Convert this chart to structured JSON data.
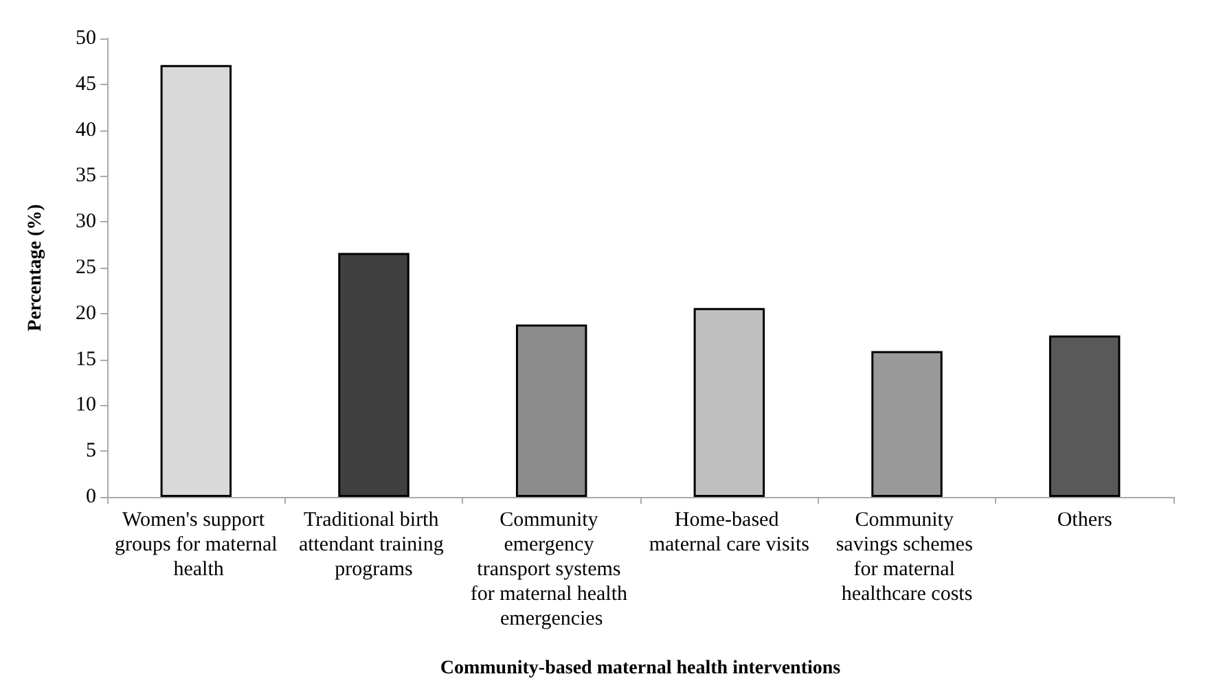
{
  "chart_data": {
    "type": "bar",
    "xlabel": "Community-based maternal health interventions",
    "ylabel": "Percentage (%)",
    "categories": [
      "Women's support groups for maternal health",
      "Traditional birth attendant training programs",
      "Community emergency transport systems for maternal health emergencies",
      "Home-based maternal care visits",
      "Community savings schemes for maternal healthcare costs",
      "Others"
    ],
    "values": [
      47.1,
      26.6,
      18.8,
      20.6,
      15.9,
      17.6
    ],
    "colors": [
      "#d9d9d9",
      "#404040",
      "#8c8c8c",
      "#bfbfbf",
      "#999999",
      "#595959"
    ],
    "ylim": [
      0,
      50
    ],
    "yticks": [
      0,
      5,
      10,
      15,
      20,
      25,
      30,
      35,
      40,
      45,
      50
    ],
    "grid": false
  }
}
